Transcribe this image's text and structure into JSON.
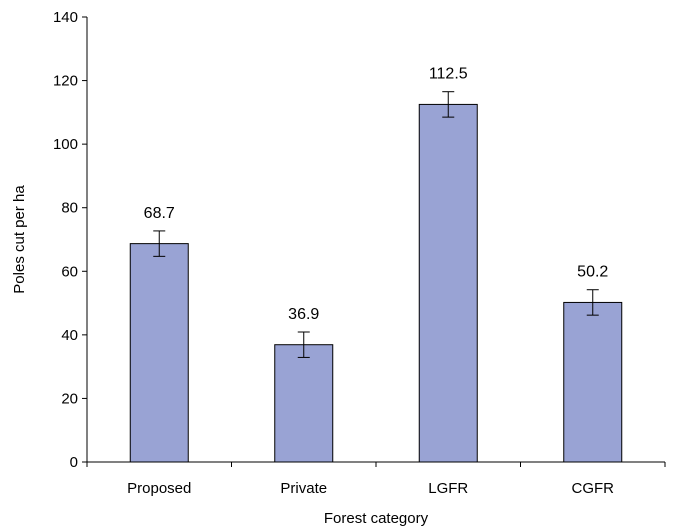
{
  "chart_data": {
    "type": "bar",
    "title": "",
    "xlabel": "Forest category",
    "ylabel": "Poles cut per ha",
    "categories": [
      "Proposed",
      "Private",
      "LGFR",
      "CGFR"
    ],
    "values": [
      68.7,
      36.9,
      112.5,
      50.2
    ],
    "data_labels": [
      "68.7",
      "36.9",
      "112.5",
      "50.2"
    ],
    "error": [
      4,
      4,
      4,
      4
    ],
    "ylim": [
      0,
      140
    ],
    "yticks": [
      0,
      20,
      40,
      60,
      80,
      100,
      120,
      140
    ],
    "ytick_labels": [
      "0",
      "20",
      "40",
      "60",
      "80",
      "100",
      "120",
      "140"
    ],
    "grid": false,
    "legend": "none",
    "bar_color": "#99a3d4"
  }
}
